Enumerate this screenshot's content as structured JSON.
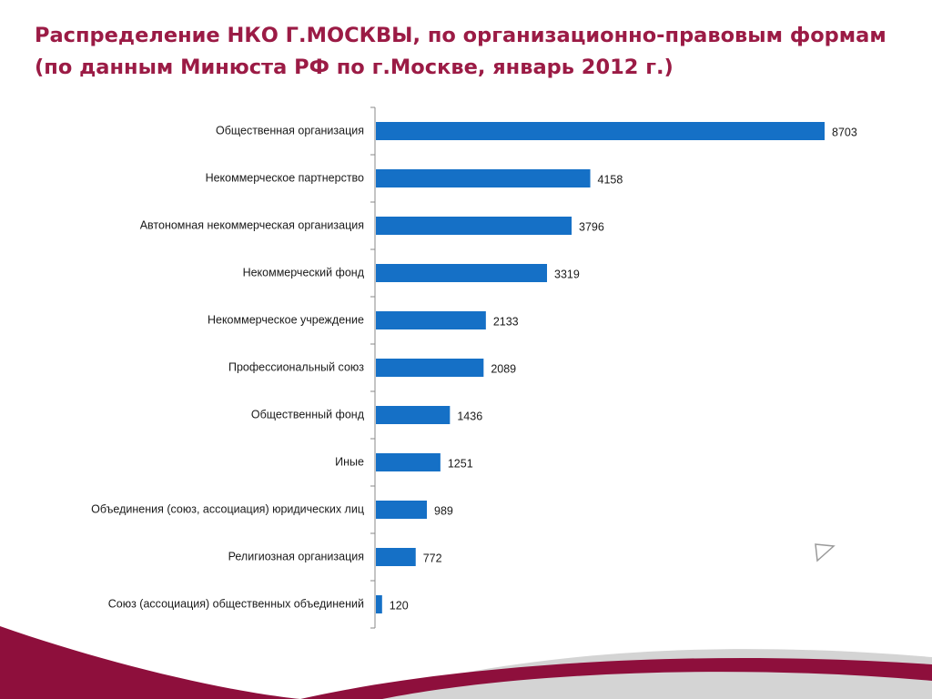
{
  "title": "Распределение  НКО Г.МОСКВЫ, по организационно-правовым формам (по данным Минюста РФ по г.Москве, январь 2012 г.)",
  "colors": {
    "title": "#9b1b45",
    "bar": "#1570c6",
    "axis": "#888888",
    "swoosh_dark": "#8e0f3c",
    "swoosh_light": "#c7c7c7"
  },
  "chart_data": {
    "type": "bar",
    "orientation": "horizontal",
    "title": "Распределение  НКО Г.МОСКВЫ, по организационно-правовым формам (по данным Минюста РФ по г.Москве, январь 2012 г.)",
    "categories": [
      "Общественная организация",
      "Некоммерческое партнерство",
      "Автономная некоммерческая организация",
      "Некоммерческий фонд",
      "Некоммерческое учреждение",
      "Профессиональный союз",
      "Общественный фонд",
      "Иные",
      "Объединения (союз, ассоциация) юридических лиц",
      "Религиозная организация",
      "Союз (ассоциация) общественных объединений"
    ],
    "values": [
      8703,
      4158,
      3796,
      3319,
      2133,
      2089,
      1436,
      1251,
      989,
      772,
      120
    ],
    "xlim": [
      0,
      8703
    ],
    "grid": false,
    "legend": "none"
  }
}
